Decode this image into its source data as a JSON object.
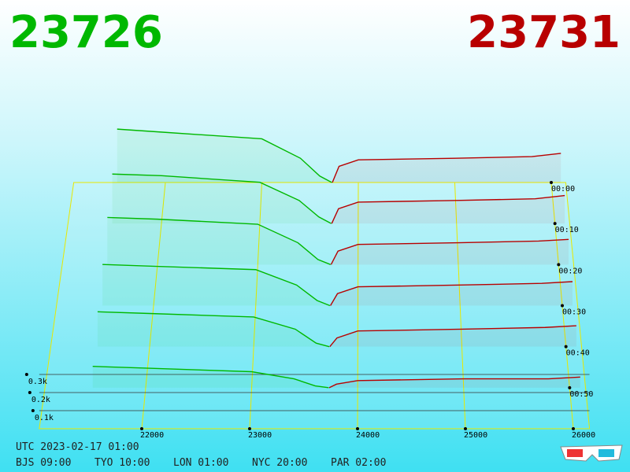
{
  "chart_data": {
    "type": "depth3d",
    "bid_price": "23726",
    "ask_price": "23731",
    "bid_color": "#00b800",
    "ask_color": "#b80000",
    "xlim": [
      21050,
      26150
    ],
    "xticks": [
      22000,
      23000,
      24000,
      25000,
      26000
    ],
    "tlim": [
      0,
      60
    ],
    "tticks": [
      {
        "value": 0,
        "label": "00:00"
      },
      {
        "value": 10,
        "label": "00:10"
      },
      {
        "value": 20,
        "label": "00:20"
      },
      {
        "value": 30,
        "label": "00:30"
      },
      {
        "value": 40,
        "label": "00:40"
      },
      {
        "value": 50,
        "label": "00:50"
      }
    ],
    "zticks": [
      {
        "value": 0.1,
        "label": "0.1k"
      },
      {
        "value": 0.2,
        "label": "0.2k"
      },
      {
        "value": 0.3,
        "label": "0.3k"
      }
    ],
    "bid_prices": [
      21500,
      22000,
      23000,
      23400,
      23600,
      23726
    ],
    "ask_prices": [
      23731,
      23800,
      24000,
      25000,
      25800,
      26100
    ],
    "snapshots": [
      {
        "time": 0,
        "bid": [
          0.33,
          0.31,
          0.27,
          0.15,
          0.04,
          0
        ],
        "ask": [
          0,
          0.1,
          0.14,
          0.15,
          0.16,
          0.18
        ]
      },
      {
        "time": 10,
        "bid": [
          0.3,
          0.29,
          0.25,
          0.14,
          0.04,
          0
        ],
        "ask": [
          0,
          0.09,
          0.13,
          0.14,
          0.15,
          0.17
        ]
      },
      {
        "time": 20,
        "bid": [
          0.28,
          0.27,
          0.24,
          0.13,
          0.03,
          0
        ],
        "ask": [
          0,
          0.08,
          0.12,
          0.13,
          0.14,
          0.15
        ]
      },
      {
        "time": 30,
        "bid": [
          0.24,
          0.23,
          0.21,
          0.12,
          0.03,
          0
        ],
        "ask": [
          0,
          0.07,
          0.11,
          0.12,
          0.13,
          0.14
        ]
      },
      {
        "time": 40,
        "bid": [
          0.2,
          0.19,
          0.17,
          0.1,
          0.02,
          0
        ],
        "ask": [
          0,
          0.05,
          0.09,
          0.1,
          0.11,
          0.12
        ]
      },
      {
        "time": 50,
        "bid": [
          0.12,
          0.11,
          0.09,
          0.05,
          0.01,
          0
        ],
        "ask": [
          0,
          0.02,
          0.04,
          0.05,
          0.05,
          0.06
        ]
      }
    ],
    "utc": "UTC 2023-02-17 01:00",
    "clocks": [
      "BJS 09:00",
      "TYO 10:00",
      "LON 01:00",
      "NYC 20:00",
      "PAR 02:00"
    ]
  }
}
